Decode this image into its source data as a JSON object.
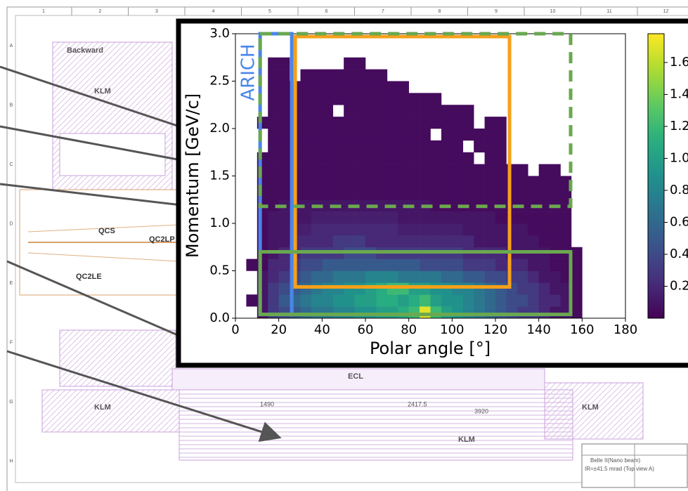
{
  "drawing": {
    "col_numbers": [
      "1",
      "2",
      "3",
      "4",
      "5",
      "6",
      "7",
      "8",
      "9",
      "10",
      "11",
      "12"
    ],
    "row_letters": [
      "A",
      "B",
      "C",
      "D",
      "E",
      "F",
      "G",
      "H"
    ],
    "labels": [
      "Backward",
      "KLM",
      "QCS",
      "QC2LP",
      "QC2LE",
      "ECL",
      "KLM",
      "KLM",
      "KLM",
      "1490",
      "2417.5",
      "3920"
    ],
    "title_block": [
      "Belle II(Nano beam)",
      "IR=±41.5 mrad (Top view A)"
    ]
  },
  "chart_data": {
    "type": "heatmap",
    "xlabel": "Polar angle [°]",
    "ylabel": "Momentum [GeV/c]",
    "xlim": [
      0,
      180
    ],
    "ylim": [
      0,
      3
    ],
    "xticks": [
      0,
      20,
      40,
      60,
      80,
      100,
      120,
      140,
      160,
      180
    ],
    "yticks": [
      {
        "value": 0,
        "label": "0.0"
      },
      0.5,
      {
        "value": 1,
        "label": "1.0"
      },
      1.5,
      {
        "value": 2,
        "label": "2.0"
      },
      2.5,
      {
        "value": 3,
        "label": "3.0"
      }
    ],
    "colormap": "viridis",
    "clim": [
      0,
      1.78
    ],
    "cticks": [
      0.2,
      0.4,
      0.6,
      0.8,
      {
        "value": 1,
        "label": "1.0"
      },
      1.2,
      1.4,
      1.6
    ],
    "x_bins": [
      5,
      10,
      15,
      20,
      25,
      30,
      35,
      40,
      45,
      50,
      55,
      60,
      65,
      70,
      75,
      80,
      85,
      90,
      95,
      100,
      105,
      110,
      115,
      120,
      125,
      130,
      135,
      140,
      145,
      150,
      155,
      160,
      165
    ],
    "y_bins": [
      0,
      0.125,
      0.25,
      0.375,
      0.5,
      0.625,
      0.75,
      0.875,
      1,
      1.125,
      1.25,
      1.375,
      1.5,
      1.625,
      1.75,
      1.875,
      2,
      2.125,
      2.25,
      2.375,
      2.5,
      2.625,
      2.75
    ],
    "z": [
      [
        null,
        0.1,
        0.3,
        0.4,
        0.5,
        0.6,
        0.7,
        0.7,
        0.8,
        0.8,
        0.9,
        0.9,
        1.0,
        1.0,
        1.1,
        1.2,
        1.7,
        1.2,
        1.0,
        0.9,
        0.8,
        0.7,
        0.6,
        0.5,
        0.4,
        0.3,
        0.3,
        0.2,
        0.1,
        0.1,
        0.05,
        null
      ],
      [
        0.05,
        0.1,
        0.3,
        0.5,
        0.6,
        0.7,
        0.8,
        0.8,
        0.9,
        0.9,
        1.0,
        1.0,
        1.1,
        1.1,
        1.0,
        1.1,
        1.2,
        1.0,
        0.9,
        0.9,
        0.8,
        0.7,
        0.6,
        0.5,
        0.4,
        0.4,
        0.3,
        0.2,
        0.2,
        0.1,
        0.05,
        null
      ],
      [
        null,
        0.1,
        0.3,
        0.4,
        0.5,
        0.6,
        0.7,
        0.8,
        0.8,
        0.9,
        0.9,
        1.0,
        1.1,
        1.2,
        1.2,
        1.0,
        1.0,
        0.9,
        0.9,
        0.8,
        0.8,
        0.7,
        0.6,
        0.5,
        0.4,
        0.3,
        0.3,
        0.2,
        0.1,
        0.1,
        0.05,
        null
      ],
      [
        null,
        0.1,
        0.2,
        0.3,
        0.4,
        0.5,
        0.6,
        0.6,
        0.7,
        0.7,
        0.7,
        0.8,
        0.8,
        0.8,
        0.7,
        0.7,
        0.7,
        0.7,
        0.6,
        0.6,
        0.5,
        0.5,
        0.4,
        0.4,
        0.3,
        0.3,
        0.2,
        0.1,
        0.1,
        0.05,
        0.05,
        null
      ],
      [
        0.05,
        0.05,
        0.2,
        0.2,
        0.3,
        0.4,
        0.4,
        0.5,
        0.5,
        0.5,
        0.5,
        0.5,
        0.5,
        0.5,
        0.5,
        0.5,
        0.4,
        0.4,
        0.4,
        0.4,
        0.3,
        0.3,
        0.3,
        0.2,
        0.2,
        0.2,
        0.1,
        0.1,
        0.05,
        0.05,
        0.05,
        null
      ],
      [
        null,
        0.05,
        0.1,
        0.2,
        0.2,
        0.3,
        0.3,
        0.3,
        0.3,
        0.4,
        0.4,
        0.4,
        0.3,
        0.3,
        0.3,
        0.3,
        0.3,
        0.3,
        0.3,
        0.3,
        0.2,
        0.2,
        0.2,
        0.2,
        0.1,
        0.1,
        0.1,
        0.1,
        0.05,
        0.05,
        0.05,
        null
      ],
      [
        null,
        0.05,
        0.1,
        0.1,
        0.2,
        0.2,
        0.2,
        0.2,
        0.3,
        0.3,
        0.3,
        0.2,
        0.2,
        0.2,
        0.2,
        0.2,
        0.2,
        0.2,
        0.2,
        0.2,
        0.2,
        0.1,
        0.1,
        0.1,
        0.1,
        0.1,
        0.1,
        0.05,
        0.05,
        0.05,
        null,
        null
      ],
      [
        null,
        0.05,
        0.1,
        0.1,
        0.15,
        0.15,
        0.2,
        0.2,
        0.2,
        0.2,
        0.2,
        0.2,
        0.2,
        0.2,
        0.15,
        0.15,
        0.15,
        0.15,
        0.15,
        0.15,
        0.1,
        0.1,
        0.1,
        0.1,
        0.1,
        0.1,
        0.05,
        0.05,
        0.05,
        0.05,
        null,
        null
      ],
      [
        null,
        0.05,
        0.1,
        0.1,
        0.1,
        0.1,
        0.15,
        0.15,
        0.15,
        0.15,
        0.15,
        0.15,
        0.15,
        0.15,
        0.1,
        0.1,
        0.1,
        0.1,
        0.1,
        0.1,
        0.1,
        0.1,
        0.1,
        0.05,
        0.05,
        0.05,
        0.05,
        0.05,
        0.05,
        0.05,
        null,
        null
      ],
      [
        null,
        0.05,
        0.05,
        0.1,
        0.1,
        0.1,
        0.1,
        0.1,
        0.1,
        0.1,
        0.1,
        0.1,
        0.1,
        0.1,
        0.1,
        0.1,
        0.1,
        0.05,
        0.05,
        0.05,
        0.05,
        0.05,
        0.05,
        0.05,
        0.05,
        0.05,
        0.05,
        0.05,
        0.05,
        0.05,
        null,
        null
      ],
      [
        null,
        0.05,
        0.05,
        0.05,
        0.05,
        0.05,
        0.05,
        0.05,
        0.05,
        0.05,
        0.05,
        0.05,
        0.05,
        0.05,
        0.05,
        0.05,
        0.05,
        0.05,
        0.05,
        0.05,
        0.05,
        0.05,
        0.05,
        0.05,
        0.05,
        0.05,
        0.05,
        0.05,
        0.05,
        0.05,
        null,
        null
      ],
      [
        null,
        0.05,
        0.05,
        0.05,
        0.05,
        0.05,
        0.05,
        0.05,
        0.05,
        0.05,
        0.05,
        0.05,
        0.05,
        0.05,
        0.05,
        0.05,
        0.05,
        0.05,
        0.05,
        0.05,
        0.05,
        0.05,
        0.05,
        0.05,
        0.05,
        0.05,
        0.05,
        0.05,
        0.05,
        0.05,
        null,
        null
      ],
      [
        null,
        0.05,
        0.05,
        0.05,
        0.05,
        0.05,
        0.05,
        0.05,
        0.05,
        0.05,
        0.05,
        0.05,
        0.05,
        0.05,
        0.05,
        0.05,
        0.05,
        0.05,
        0.05,
        0.05,
        0.05,
        0.05,
        0.05,
        0.05,
        0.05,
        0.05,
        null,
        0.05,
        0.05,
        null,
        null,
        null
      ],
      [
        null,
        0.05,
        0.05,
        0.05,
        0.05,
        0.05,
        0.05,
        0.05,
        0.05,
        0.05,
        0.05,
        0.05,
        0.05,
        0.05,
        0.05,
        0.05,
        0.05,
        0.05,
        0.05,
        0.05,
        0.05,
        null,
        0.05,
        0.05,
        null,
        null,
        null,
        null,
        null,
        null,
        null,
        null
      ],
      [
        null,
        null,
        0.05,
        0.05,
        0.05,
        0.05,
        0.05,
        0.05,
        0.05,
        0.05,
        0.05,
        0.05,
        0.05,
        0.05,
        0.05,
        0.05,
        0.05,
        0.05,
        0.05,
        0.05,
        null,
        0.05,
        0.05,
        0.05,
        null,
        null,
        null,
        null,
        null,
        null,
        null,
        null
      ],
      [
        null,
        null,
        0.05,
        0.05,
        0.05,
        0.05,
        0.05,
        0.05,
        0.05,
        0.05,
        0.05,
        0.05,
        0.05,
        0.05,
        0.05,
        0.05,
        0.05,
        null,
        0.05,
        0.05,
        0.05,
        0.05,
        0.05,
        0.05,
        null,
        null,
        null,
        null,
        null,
        null,
        null,
        null
      ],
      [
        null,
        0.05,
        0.05,
        0.05,
        0.05,
        0.05,
        0.05,
        0.05,
        0.05,
        0.05,
        0.05,
        0.05,
        0.05,
        0.05,
        0.05,
        0.05,
        0.05,
        0.05,
        0.05,
        0.05,
        0.05,
        null,
        0.05,
        0.05,
        null,
        null,
        null,
        null,
        null,
        null,
        null,
        null
      ],
      [
        null,
        null,
        0.05,
        0.05,
        0.05,
        0.05,
        0.05,
        0.05,
        null,
        0.05,
        0.05,
        0.05,
        0.05,
        0.05,
        0.05,
        0.05,
        0.05,
        0.05,
        0.05,
        0.05,
        0.05,
        null,
        null,
        null,
        null,
        null,
        null,
        null,
        null,
        null,
        null,
        null
      ],
      [
        null,
        null,
        0.05,
        0.05,
        0.05,
        0.05,
        0.05,
        0.05,
        0.05,
        0.05,
        0.05,
        0.05,
        0.05,
        0.05,
        0.05,
        0.05,
        0.05,
        0.05,
        null,
        null,
        null,
        null,
        null,
        null,
        null,
        null,
        null,
        null,
        null,
        null,
        null,
        null
      ],
      [
        null,
        null,
        0.05,
        0.05,
        0.05,
        0.05,
        0.05,
        0.05,
        0.05,
        0.05,
        0.05,
        0.05,
        0.05,
        0.05,
        0.05,
        null,
        null,
        null,
        null,
        null,
        null,
        null,
        null,
        null,
        null,
        null,
        null,
        null,
        null,
        null,
        null,
        null
      ],
      [
        null,
        null,
        0.05,
        0.05,
        null,
        0.05,
        0.05,
        0.05,
        0.05,
        0.05,
        0.05,
        0.05,
        0.05,
        null,
        null,
        null,
        null,
        null,
        null,
        null,
        null,
        null,
        null,
        null,
        null,
        null,
        null,
        null,
        null,
        null,
        null,
        null
      ],
      [
        null,
        null,
        0.05,
        0.05,
        null,
        null,
        null,
        null,
        null,
        0.05,
        0.05,
        null,
        null,
        null,
        null,
        null,
        null,
        null,
        null,
        null,
        null,
        null,
        null,
        null,
        null,
        null,
        null,
        null,
        null,
        null,
        null,
        null
      ]
    ],
    "regions": [
      {
        "label": "ARICH",
        "color": "#4a86e8",
        "x": [
          11.4,
          26
        ],
        "y": [
          0.04,
          3.0
        ]
      },
      {
        "color": "#f5a01a",
        "x": [
          27.6,
          126.5
        ],
        "y": [
          0.33,
          2.97
        ]
      },
      {
        "color": "#6aa84f",
        "x": [
          11.4,
          154.7
        ],
        "y": [
          0.04,
          0.7
        ]
      },
      {
        "color": "#6aa84f",
        "dashed": true,
        "x": [
          11.4,
          154.7
        ],
        "y": [
          1.18,
          3.0
        ]
      }
    ]
  }
}
